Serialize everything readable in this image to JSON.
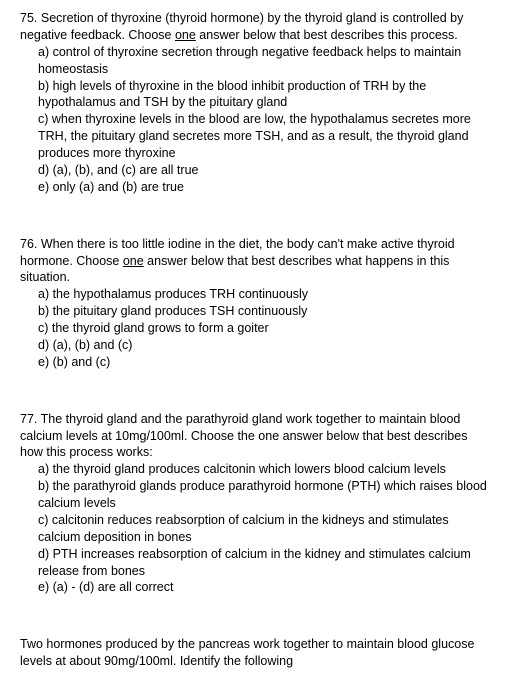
{
  "q75": {
    "num": "75.",
    "stem_pre": "Secretion of thyroxine (thyroid hormone) by the thyroid gland is controlled by negative feedback.  Choose ",
    "stem_under": "one",
    "stem_post": " answer below that best describes this process.",
    "a": "a) control of thyroxine secretion through negative feedback helps to maintain homeostasis",
    "b": "b) high levels of thyroxine in the blood inhibit production of TRH by the hypothalamus and TSH by the pituitary gland",
    "c": "c) when thyroxine levels in the blood are low, the hypothalamus secretes more TRH, the pituitary gland secretes more TSH, and as a result, the thyroid gland produces more thyroxine",
    "d": "d) (a), (b), and (c) are all true",
    "e": "e) only (a) and (b) are true"
  },
  "q76": {
    "num": "76.",
    "stem_pre": "When there is too little iodine in the diet, the body can't make active thyroid hormone.  Choose ",
    "stem_under": "one",
    "stem_post": " answer below that best describes what happens in this situation.",
    "a": "a) the hypothalamus produces TRH continuously",
    "b": "b) the pituitary gland produces TSH continuously",
    "c": "c) the thyroid gland grows to form a goiter",
    "d": "d) (a), (b) and (c)",
    "e": "e) (b) and (c)"
  },
  "q77": {
    "num": "77.",
    "stem": "The thyroid gland and the parathyroid gland work together to maintain blood calcium levels at 10mg/100ml.  Choose the one answer below that best describes how this process works:",
    "a": "a) the thyroid gland produces calcitonin which lowers blood calcium levels",
    "b": "b) the parathyroid glands produce parathyroid hormone (PTH) which raises blood calcium levels",
    "c": "c) calcitonin reduces reabsorption of calcium in the kidneys and stimulates calcium deposition in bones",
    "d": "d) PTH increases reabsorption of calcium in the kidney and stimulates calcium release from bones",
    "e": "e) (a) - (d) are all correct"
  },
  "partial": "Two hormones produced by the pancreas work together to maintain blood glucose levels at about 90mg/100ml.  Identify the following"
}
